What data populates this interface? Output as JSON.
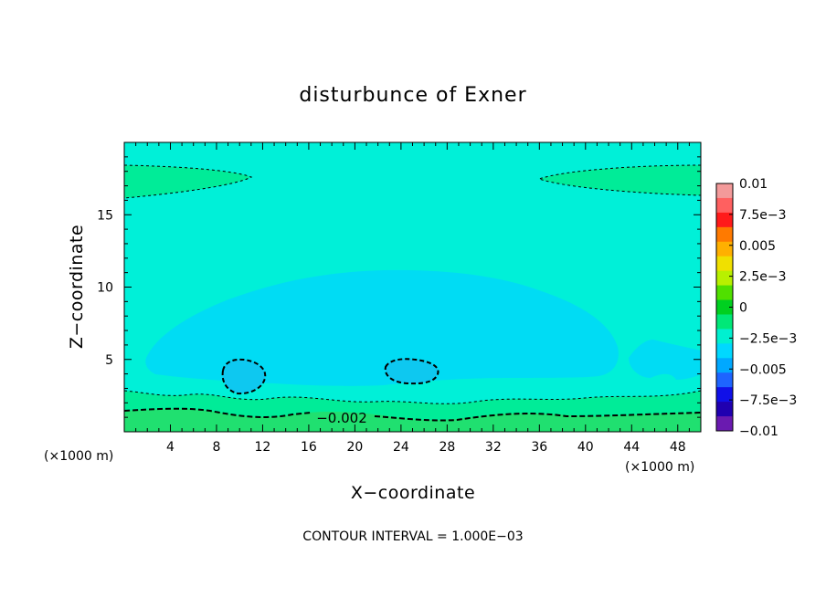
{
  "chart_data": {
    "type": "contour",
    "title": "disturbunce of Exner",
    "xlabel": "X−coordinate",
    "ylabel": "Z−coordinate",
    "x_unit_left": "(×1000 m)",
    "x_unit_right": "(×1000 m)",
    "xlim": [
      0,
      50
    ],
    "ylim": [
      0,
      20
    ],
    "x_ticks": [
      4,
      8,
      12,
      16,
      20,
      24,
      28,
      32,
      36,
      40,
      44,
      48
    ],
    "y_ticks": [
      5,
      10,
      15
    ],
    "x_tick_labels": [
      "4",
      "8",
      "12",
      "16",
      "20",
      "24",
      "28",
      "32",
      "36",
      "40",
      "44",
      "48"
    ],
    "y_tick_labels": [
      "5",
      "10",
      "15"
    ],
    "contour_interval_text": "CONTOUR INTERVAL = 1.000E−03",
    "contour_label": "−0.002",
    "colorbar": {
      "tick_labels": [
        "0.01",
        "7.5e−3",
        "0.005",
        "2.5e−3",
        "0",
        "−2.5e−3",
        "−0.005",
        "−7.5e−3",
        "−0.01"
      ],
      "levels": [
        0.01,
        0.0075,
        0.005,
        0.0025,
        0,
        -0.0025,
        -0.005,
        -0.0075,
        -0.01
      ],
      "colors_top_to_bottom": [
        "#f39a9a",
        "#ff6060",
        "#ff1a1a",
        "#ff7a00",
        "#ffb000",
        "#f0e000",
        "#b8f000",
        "#50e000",
        "#00d020",
        "#00e878",
        "#00f0d0",
        "#00d8ff",
        "#00a8ff",
        "#1e64ff",
        "#1010e8",
        "#2000b0",
        "#6a1ab0"
      ]
    },
    "fill_colors": {
      "background": "#00f0d8",
      "negative_region": "#00dcf4",
      "lower_negative": "#0ec8f0",
      "near_zero": "#00ec98",
      "slightly_positive": "#20e070",
      "top_band": "#00ec98"
    }
  }
}
